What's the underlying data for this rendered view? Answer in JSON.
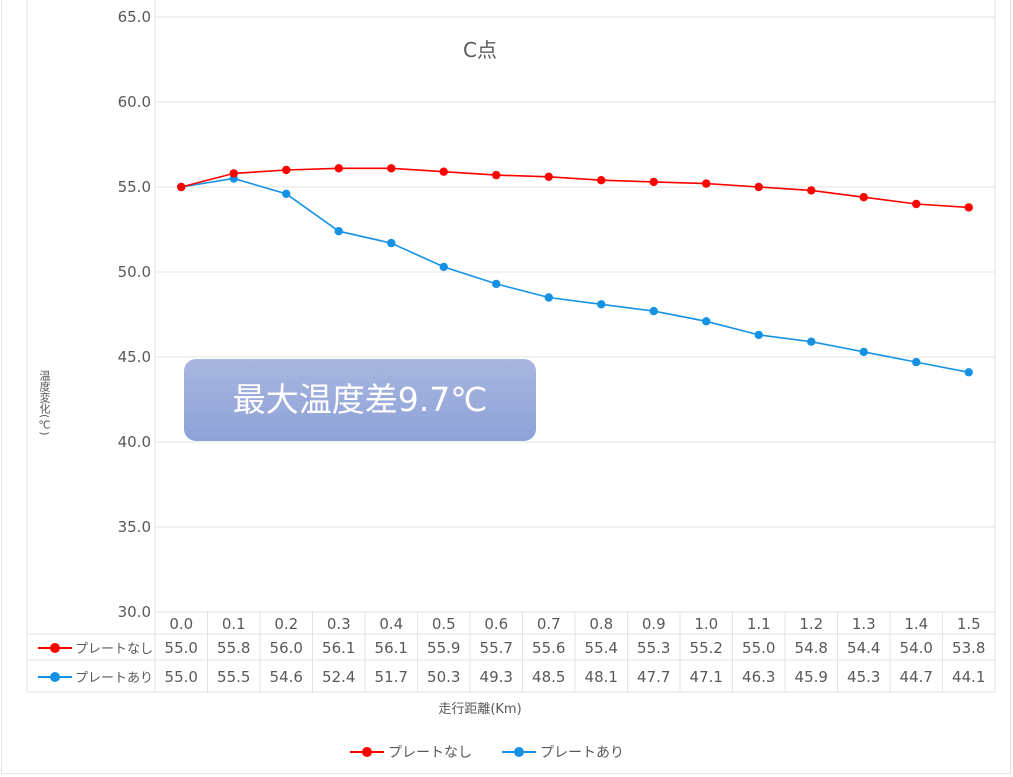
{
  "chart_data": {
    "type": "line",
    "title": "C点",
    "xlabel": "走行距離(Km)",
    "ylabel": "温度変化(℃)",
    "ylim": [
      30.0,
      65.0
    ],
    "yticks": [
      "30.0",
      "35.0",
      "40.0",
      "45.0",
      "50.0",
      "55.0",
      "60.0",
      "65.0"
    ],
    "grid": true,
    "legend_position": "bottom",
    "categories": [
      "0.0",
      "0.1",
      "0.2",
      "0.3",
      "0.4",
      "0.5",
      "0.6",
      "0.7",
      "0.8",
      "0.9",
      "1.0",
      "1.1",
      "1.2",
      "1.3",
      "1.4",
      "1.5"
    ],
    "series": [
      {
        "name": "プレートなし",
        "color": "#ff0000",
        "values": [
          55.0,
          55.8,
          56.0,
          56.1,
          56.1,
          55.9,
          55.7,
          55.6,
          55.4,
          55.3,
          55.2,
          55.0,
          54.8,
          54.4,
          54.0,
          53.8
        ]
      },
      {
        "name": "プレートあり",
        "color": "#1592e6",
        "values": [
          55.0,
          55.5,
          54.6,
          52.4,
          51.7,
          50.3,
          49.3,
          48.5,
          48.1,
          47.7,
          47.1,
          46.3,
          45.9,
          45.3,
          44.7,
          44.1
        ]
      }
    ],
    "data_table": true,
    "annotations": [
      "最大温度差9.7℃"
    ]
  },
  "callout": {
    "text": "最大温度差9.7℃",
    "color_top": "#a8b6e0",
    "color_bottom": "#8ea2d8"
  },
  "legend": {
    "items": [
      {
        "label": "プレートなし"
      },
      {
        "label": "プレートあり"
      }
    ]
  }
}
